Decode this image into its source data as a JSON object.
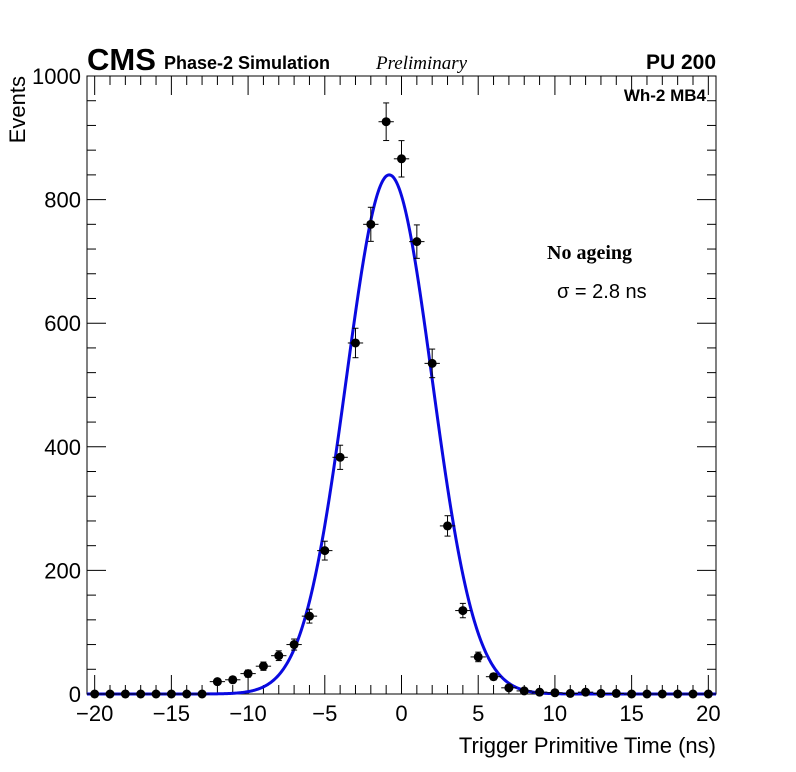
{
  "header": {
    "experiment": "CMS",
    "subtitle": "Phase-2 Simulation",
    "status": "Preliminary",
    "pileup": "PU 200"
  },
  "annotations": {
    "chamber": "Wh-2 MB4",
    "condition": "No ageing",
    "sigma_symbol": "σ",
    "sigma_text": " = 2.8 ns"
  },
  "colors": {
    "fit": "#0a0ae0",
    "points": "#000000",
    "axes": "#000000"
  },
  "chart_data": {
    "type": "scatter",
    "title": "",
    "xlabel": "Trigger Primitive Time (ns)",
    "ylabel": "Events",
    "xlim": [
      -20.5,
      20.5
    ],
    "ylim": [
      0,
      1000
    ],
    "x_ticks": [
      -20,
      -15,
      -10,
      -5,
      0,
      5,
      10,
      15,
      20
    ],
    "x_tick_labels": [
      "−20",
      "−15",
      "−10",
      "−5",
      "0",
      "5",
      "10",
      "15",
      "20"
    ],
    "y_ticks": [
      0,
      200,
      400,
      600,
      800,
      1000
    ],
    "y_tick_labels": [
      "0",
      "200",
      "400",
      "600",
      "800",
      "1000"
    ],
    "bin_half_width": 0.5,
    "series": [
      {
        "name": "Data",
        "style": "markers_with_errorbars",
        "x": [
          -20,
          -19,
          -18,
          -17,
          -16,
          -15,
          -14,
          -13,
          -12,
          -11,
          -10,
          -9,
          -8,
          -7,
          -6,
          -5,
          -4,
          -3,
          -2,
          -1,
          0,
          1,
          2,
          3,
          4,
          5,
          6,
          7,
          8,
          9,
          10,
          11,
          12,
          13,
          14,
          15,
          16,
          17,
          18,
          19,
          20
        ],
        "y": [
          0,
          0,
          0,
          0,
          0,
          0,
          0,
          0,
          20,
          23,
          33,
          45,
          62,
          80,
          126,
          232,
          383,
          568,
          760,
          926,
          866,
          732,
          535,
          272,
          135,
          60,
          28,
          10,
          5,
          3,
          2,
          1,
          3,
          1,
          1,
          0,
          0,
          0,
          0,
          0,
          0
        ]
      },
      {
        "name": "Gaussian fit",
        "style": "line",
        "mean": -0.8,
        "sigma": 2.8,
        "amplitude": 840,
        "x_range": [
          -20.5,
          20.5
        ]
      }
    ]
  }
}
